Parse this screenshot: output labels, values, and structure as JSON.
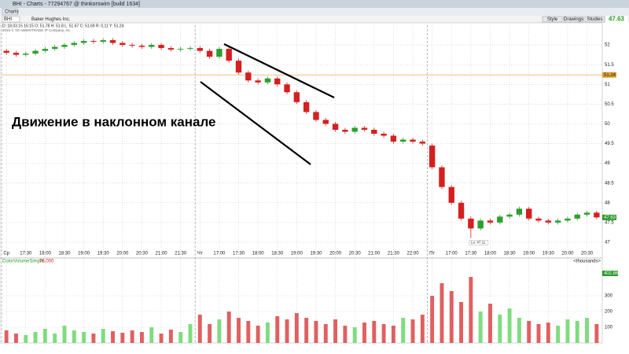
{
  "window": {
    "title": "BHI - Charts - 77294767 @ thinkorswim [build 1634]",
    "tab": "Charts",
    "symbol": "BHI",
    "company": "Baker Hughes Inc.",
    "info": "D: 18.03.15 16:15  O: 51.78  H: 51.8  L: 51.67  C: 51.69  R: 0.11  Y: 51.24",
    "copyright": "2016 © TD AMERITRADE IP Company, Inc.",
    "buttons": [
      "Style",
      "Drawings",
      "Studies"
    ],
    "quote": "47.63",
    "annotation": "Движение в наклонном канале"
  },
  "chart_data": [
    {
      "type": "candlestick",
      "grid": true,
      "up_color": "#2e9e2e",
      "down_color": "#d42020",
      "categories": [
        "Ср",
        null,
        "17:30",
        null,
        "18:00",
        null,
        "18:30",
        null,
        "19:00",
        null,
        "19:30",
        null,
        "20:00",
        null,
        "20:30",
        null,
        "21:00",
        null,
        "21:30",
        null,
        "Чт",
        null,
        "17:00",
        null,
        "17:30",
        null,
        "18:00",
        null,
        "18:30",
        null,
        "19:00",
        null,
        "19:30",
        null,
        "20:00",
        null,
        "20:30",
        null,
        "21:00",
        null,
        "21:30",
        null,
        "22:00",
        null,
        "Пт",
        null,
        "17:00",
        null,
        "17:30",
        null,
        "18:00",
        null,
        "18:30",
        null,
        "19:00",
        null,
        "19:30",
        null,
        "20:00",
        null,
        "20:30",
        null
      ],
      "open": [
        51.85,
        51.8,
        51.75,
        51.78,
        51.85,
        51.9,
        51.95,
        52.0,
        52.05,
        52.1,
        52.08,
        52.12,
        52.05,
        52.0,
        51.98,
        51.95,
        52.0,
        51.92,
        51.88,
        51.9,
        51.92,
        51.85,
        51.7,
        51.9,
        51.6,
        51.3,
        51.1,
        51.05,
        51.15,
        51.0,
        50.8,
        50.55,
        50.3,
        50.1,
        50.0,
        49.85,
        49.8,
        49.9,
        49.85,
        49.75,
        49.7,
        49.55,
        49.6,
        49.55,
        49.45,
        48.9,
        48.4,
        48.0,
        47.6,
        47.35,
        47.55,
        47.5,
        47.65,
        47.7,
        47.85,
        47.6,
        47.55,
        47.5,
        47.55,
        47.6,
        47.7,
        47.75
      ],
      "high": [
        51.9,
        51.85,
        51.83,
        51.9,
        51.95,
        52.0,
        52.05,
        52.1,
        52.15,
        52.15,
        52.17,
        52.17,
        52.1,
        52.05,
        52.03,
        52.05,
        52.05,
        51.97,
        51.95,
        51.97,
        51.97,
        51.9,
        51.95,
        51.95,
        51.65,
        51.35,
        51.15,
        51.2,
        51.2,
        51.05,
        50.85,
        50.6,
        50.35,
        50.15,
        50.05,
        49.9,
        49.95,
        49.95,
        49.9,
        49.8,
        49.75,
        49.65,
        49.65,
        49.6,
        49.5,
        48.95,
        48.45,
        48.05,
        47.65,
        47.6,
        47.6,
        47.7,
        47.75,
        47.9,
        47.9,
        47.65,
        47.6,
        47.6,
        47.65,
        47.75,
        47.8,
        47.8
      ],
      "low": [
        51.75,
        51.7,
        51.7,
        51.73,
        51.8,
        51.85,
        51.9,
        51.95,
        52.0,
        52.03,
        52.03,
        52.0,
        51.95,
        51.93,
        51.9,
        51.9,
        51.87,
        51.83,
        51.83,
        51.85,
        51.8,
        51.65,
        51.65,
        51.55,
        51.25,
        51.05,
        51.0,
        51.0,
        50.95,
        50.75,
        50.5,
        50.25,
        50.05,
        49.95,
        49.8,
        49.75,
        49.75,
        49.8,
        49.7,
        49.65,
        49.5,
        49.5,
        49.5,
        49.45,
        48.85,
        48.35,
        47.95,
        47.55,
        47.11,
        47.3,
        47.45,
        47.45,
        47.6,
        47.65,
        47.55,
        47.5,
        47.45,
        47.45,
        47.5,
        47.55,
        47.65,
        47.58
      ],
      "close": [
        51.8,
        51.75,
        51.78,
        51.85,
        51.9,
        51.95,
        52.0,
        52.05,
        52.1,
        52.08,
        52.12,
        52.05,
        52.0,
        51.98,
        51.95,
        52.0,
        51.92,
        51.88,
        51.9,
        51.92,
        51.85,
        51.7,
        51.9,
        51.6,
        51.3,
        51.1,
        51.05,
        51.15,
        51.0,
        50.8,
        50.55,
        50.3,
        50.1,
        50.0,
        49.85,
        49.8,
        49.9,
        49.85,
        49.75,
        49.7,
        49.55,
        49.6,
        49.55,
        49.5,
        48.9,
        48.4,
        48.0,
        47.6,
        47.35,
        47.55,
        47.5,
        47.65,
        47.7,
        47.85,
        47.6,
        47.55,
        47.5,
        47.55,
        47.6,
        47.7,
        47.75,
        47.63
      ],
      "ylim": [
        46.8,
        52.5
      ],
      "yticks": [
        47,
        47.5,
        48,
        48.5,
        49,
        49.5,
        50,
        50.5,
        51,
        51.5,
        52
      ],
      "reference_line": 51.24,
      "last_price": 47.63,
      "low_annotation": "Lo: 47.11"
    },
    {
      "type": "bar",
      "name": "ColorVolumeSimple",
      "name_value": "76,000",
      "unit_label": "<thousands>",
      "current_label": "402.86",
      "values": [
        80,
        60,
        50,
        70,
        90,
        60,
        110,
        80,
        70,
        60,
        90,
        75,
        65,
        80,
        70,
        100,
        60,
        85,
        70,
        120,
        180,
        120,
        150,
        200,
        160,
        140,
        110,
        130,
        170,
        150,
        190,
        160,
        140,
        120,
        150,
        110,
        100,
        130,
        140,
        120,
        110,
        160,
        150,
        180,
        300,
        380,
        330,
        260,
        420,
        200,
        250,
        180,
        220,
        160,
        140,
        120,
        130,
        110,
        150,
        140,
        160,
        120
      ],
      "ylim": [
        0,
        470
      ],
      "yticks": [
        100,
        200,
        300
      ]
    }
  ]
}
